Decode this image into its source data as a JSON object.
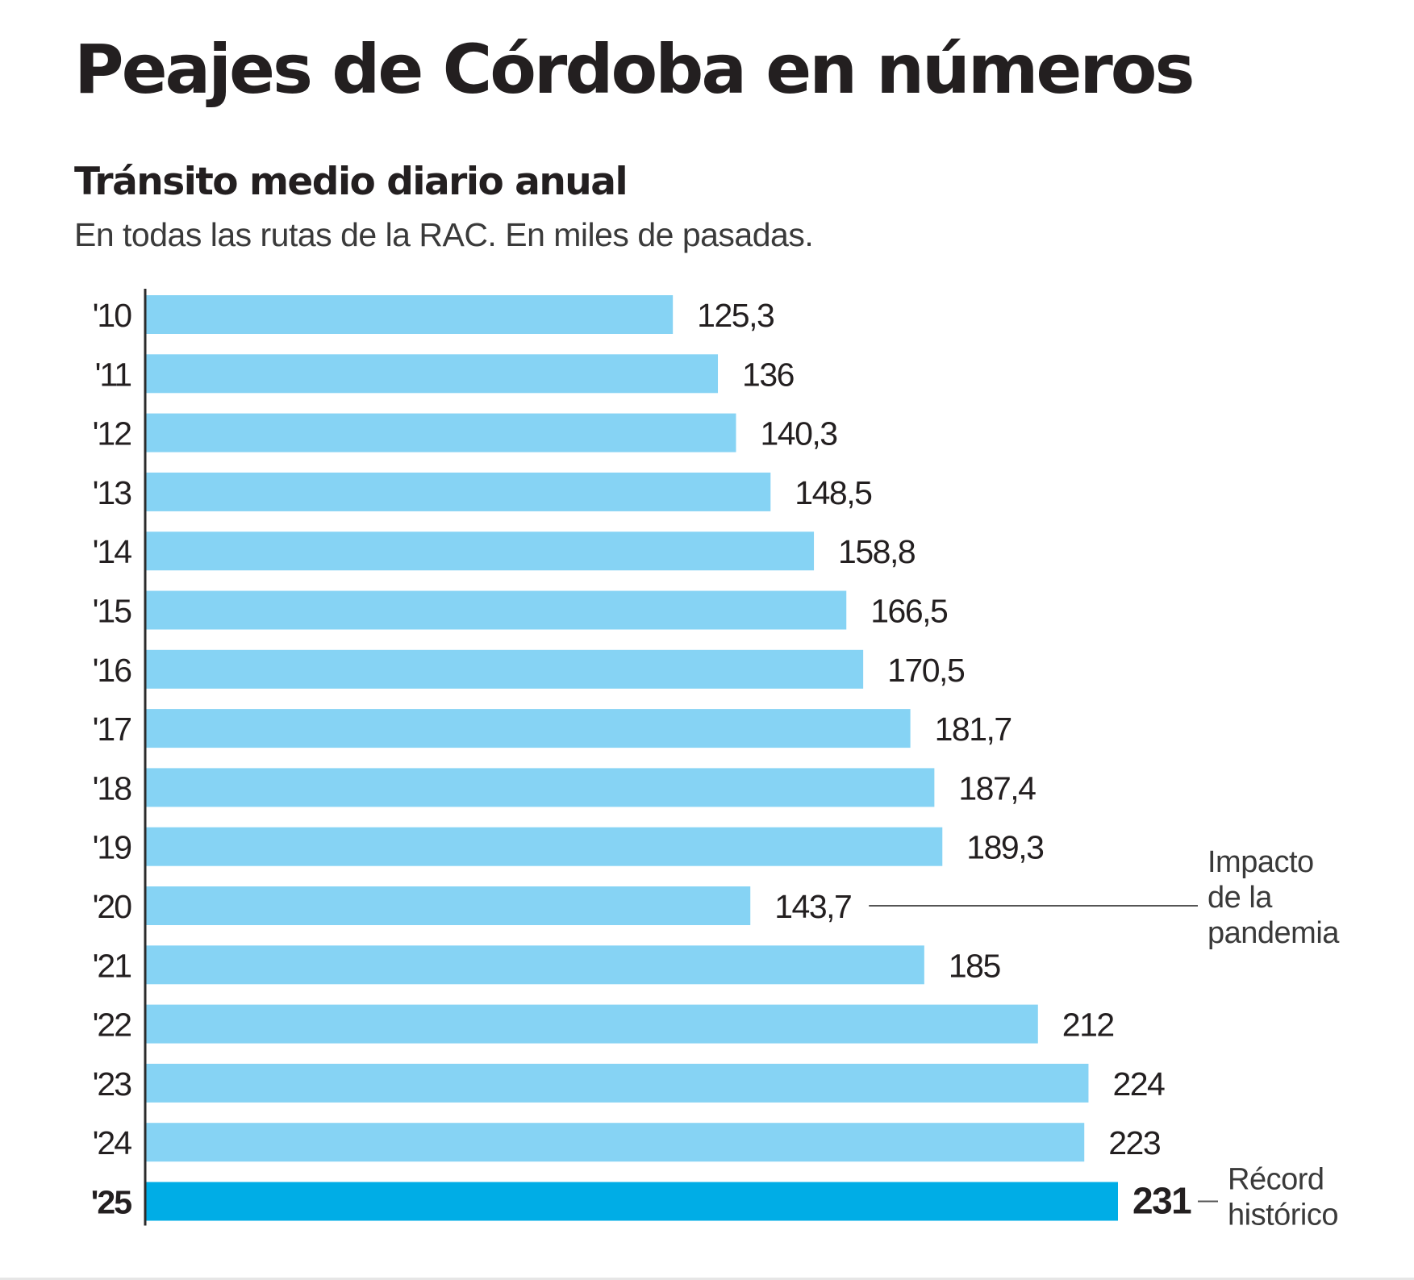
{
  "header": {
    "title": "Peajes de Córdoba en números",
    "subtitle": "Tránsito medio diario anual",
    "description": "En todas las rutas de la RAC. En miles de pasadas."
  },
  "chart_data": {
    "type": "bar",
    "orientation": "horizontal",
    "title": "Tránsito medio diario anual",
    "subtitle": "En todas las rutas de la RAC. En miles de pasadas.",
    "categories": [
      "'10",
      "'11",
      "'12",
      "'13",
      "'14",
      "'15",
      "'16",
      "'17",
      "'18",
      "'19",
      "'20",
      "'21",
      "'22",
      "'23",
      "'24",
      "'25"
    ],
    "values": [
      125.3,
      136,
      140.3,
      148.5,
      158.8,
      166.5,
      170.5,
      181.7,
      187.4,
      189.3,
      143.7,
      185,
      212,
      224,
      223,
      231
    ],
    "value_labels": [
      "125,3",
      "136",
      "140,3",
      "148,5",
      "158,8",
      "166,5",
      "170,5",
      "181,7",
      "187,4",
      "189,3",
      "143,7",
      "185",
      "212",
      "224",
      "223",
      "231"
    ],
    "highlight_index": 15,
    "annotations": [
      {
        "category": "'20",
        "lines": [
          "Impacto",
          "de la",
          "pandemia"
        ]
      },
      {
        "category": "'25",
        "lines": [
          "Récord",
          "histórico"
        ]
      }
    ],
    "xlim": [
      0,
      231
    ],
    "grid": false,
    "legend": "none",
    "colors": {
      "bar": "#86d3f4",
      "highlight": "#00ade6",
      "axis": "#2b2b2b",
      "text": "#231f20",
      "annotation_line": "#555555"
    }
  }
}
